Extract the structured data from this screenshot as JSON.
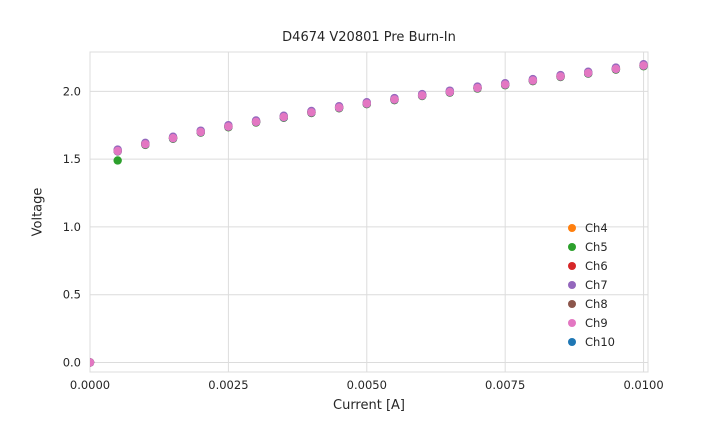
{
  "page": {
    "background": "#ffffff",
    "text_color": "#262626"
  },
  "chart_data": {
    "type": "scatter",
    "title": "D4674 V20801 Pre Burn-In",
    "xlabel": "Current [A]",
    "ylabel": "Voltage",
    "xlim": [
      0.0,
      0.01008
    ],
    "ylim": [
      -0.07,
      2.29
    ],
    "x_ticks": [
      0.0,
      0.0025,
      0.005,
      0.0075,
      0.01
    ],
    "x_tick_labels": [
      "0.0000",
      "0.0025",
      "0.0050",
      "0.0075",
      "0.0100"
    ],
    "y_ticks": [
      0.0,
      0.5,
      1.0,
      1.5,
      2.0
    ],
    "y_tick_labels": [
      "0.0",
      "0.5",
      "1.0",
      "1.5",
      "2.0"
    ],
    "grid": true,
    "grid_color": "#dcdcdc",
    "legend_position": "lower right",
    "marker_radius": 4.2,
    "x": [
      0.0,
      0.0005,
      0.001,
      0.0015,
      0.002,
      0.0025,
      0.003,
      0.0035,
      0.004,
      0.0045,
      0.005,
      0.0055,
      0.006,
      0.0065,
      0.007,
      0.0075,
      0.008,
      0.0085,
      0.009,
      0.0095,
      0.01
    ],
    "series": [
      {
        "name": "Ch4",
        "color": "#ff7f0e",
        "y": [
          0.0,
          1.565,
          1.615,
          1.66,
          1.705,
          1.745,
          1.78,
          1.815,
          1.85,
          1.885,
          1.915,
          1.945,
          1.975,
          2.0,
          2.03,
          2.055,
          2.085,
          2.115,
          2.14,
          2.17,
          2.195
        ]
      },
      {
        "name": "Ch5",
        "color": "#2ca02c",
        "y": [
          0.0,
          1.49,
          1.605,
          1.65,
          1.695,
          1.735,
          1.77,
          1.805,
          1.84,
          1.875,
          1.905,
          1.935,
          1.965,
          1.99,
          2.02,
          2.045,
          2.075,
          2.105,
          2.13,
          2.16,
          2.185
        ]
      },
      {
        "name": "Ch6",
        "color": "#d62728",
        "y": [
          0.0,
          1.562,
          1.612,
          1.657,
          1.702,
          1.742,
          1.777,
          1.812,
          1.847,
          1.882,
          1.912,
          1.942,
          1.972,
          1.997,
          2.027,
          2.052,
          2.082,
          2.112,
          2.137,
          2.167,
          2.192
        ]
      },
      {
        "name": "Ch7",
        "color": "#9467bd",
        "y": [
          0.0,
          1.57,
          1.62,
          1.665,
          1.71,
          1.75,
          1.785,
          1.82,
          1.855,
          1.89,
          1.92,
          1.95,
          1.98,
          2.005,
          2.035,
          2.06,
          2.09,
          2.12,
          2.145,
          2.175,
          2.2
        ]
      },
      {
        "name": "Ch8",
        "color": "#8c564b",
        "y": [
          0.0,
          1.557,
          1.607,
          1.652,
          1.697,
          1.737,
          1.772,
          1.807,
          1.842,
          1.877,
          1.907,
          1.937,
          1.967,
          1.992,
          2.022,
          2.047,
          2.077,
          2.107,
          2.132,
          2.162,
          2.187
        ]
      },
      {
        "name": "Ch9",
        "color": "#e377c2",
        "y": [
          0.0,
          1.56,
          1.61,
          1.655,
          1.7,
          1.74,
          1.775,
          1.81,
          1.845,
          1.88,
          1.91,
          1.94,
          1.97,
          1.995,
          2.025,
          2.05,
          2.08,
          2.11,
          2.135,
          2.165,
          2.19
        ]
      },
      {
        "name": "Ch10",
        "color": "#1f77b4",
        "y": [
          0.0,
          1.559,
          1.609,
          1.654,
          1.699,
          1.739,
          1.774,
          1.809,
          1.844,
          1.879,
          1.909,
          1.939,
          1.969,
          1.994,
          2.024,
          2.049,
          2.079,
          2.109,
          2.134,
          2.164,
          2.189
        ]
      }
    ],
    "draw_order": [
      "Ch4",
      "Ch5",
      "Ch6",
      "Ch7",
      "Ch8",
      "Ch10",
      "Ch9"
    ]
  }
}
